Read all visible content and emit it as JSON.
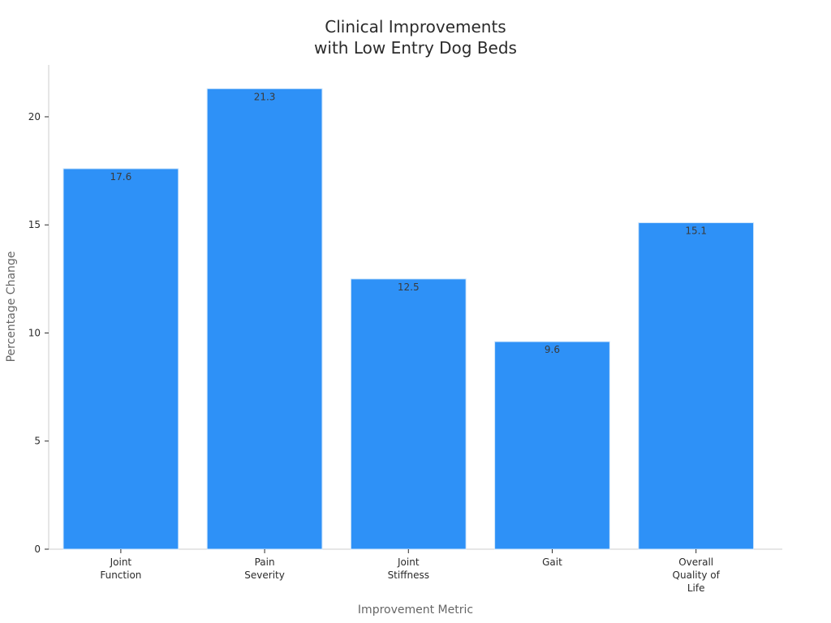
{
  "chart_data": {
    "type": "bar",
    "title": [
      "Clinical Improvements",
      "with Low Entry Dog Beds"
    ],
    "xlabel": "Improvement Metric",
    "ylabel": "Percentage Change",
    "categories": [
      [
        "Joint",
        "Function"
      ],
      [
        "Pain",
        "Severity"
      ],
      [
        "Joint",
        "Stiffness"
      ],
      [
        "Gait"
      ],
      [
        "Overall",
        "Quality of",
        "Life"
      ]
    ],
    "values": [
      17.6,
      21.3,
      12.5,
      9.6,
      15.1
    ],
    "data_labels": [
      "17.6",
      "21.3",
      "12.5",
      "9.6",
      "15.1"
    ],
    "yticks": [
      0,
      5,
      10,
      15,
      20
    ],
    "ylim": [
      0,
      22.4
    ],
    "grid": false,
    "legend": "none",
    "colors": {
      "bar": "#2e91f7",
      "bar_edge": "#d0e6fb",
      "axis": "#cccccc"
    }
  }
}
